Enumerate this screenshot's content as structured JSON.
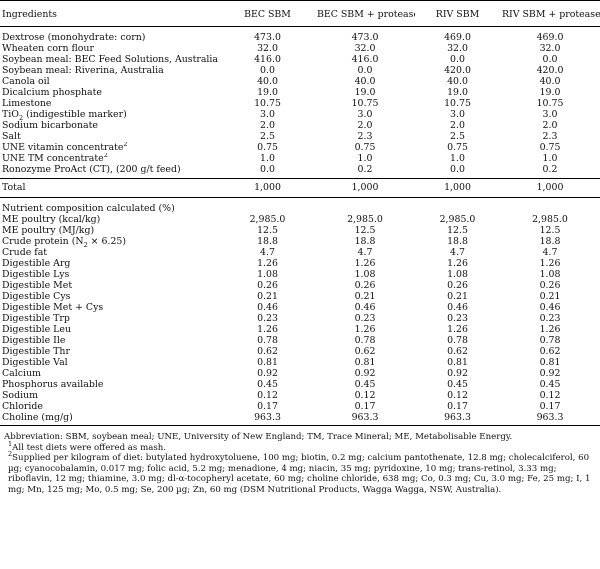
{
  "header": {
    "col0": "Ingredients",
    "col1": "BEC SBM",
    "col2": "BEC SBM + protease",
    "col3": "RIV SBM",
    "col4": "RIV SBM + protease"
  },
  "ingredients": [
    {
      "name": "Dextrose (monohydrate: corn)",
      "v": [
        "473.0",
        "473.0",
        "469.0",
        "469.0"
      ]
    },
    {
      "name": "Wheaten corn flour",
      "v": [
        "32.0",
        "32.0",
        "32.0",
        "32.0"
      ]
    },
    {
      "name": "Soybean meal: BEC Feed Solutions, Australia",
      "v": [
        "416.0",
        "416.0",
        "0.0",
        "0.0"
      ]
    },
    {
      "name": "Soybean meal: Riverina, Australia",
      "v": [
        "0.0",
        "0.0",
        "420.0",
        "420.0"
      ]
    },
    {
      "name": "Canola oil",
      "v": [
        "40.0",
        "40.0",
        "40.0",
        "40.0"
      ]
    },
    {
      "name": "Dicalcium phosphate",
      "v": [
        "19.0",
        "19.0",
        "19.0",
        "19.0"
      ]
    },
    {
      "name": "Limestone",
      "v": [
        "10.75",
        "10.75",
        "10.75",
        "10.75"
      ]
    },
    {
      "name": "(indigestible marker)",
      "v": [
        "3.0",
        "3.0",
        "3.0",
        "3.0"
      ]
    },
    {
      "name": "Sodium bicarbonate",
      "v": [
        "2.0",
        "2.0",
        "2.0",
        "2.0"
      ]
    },
    {
      "name": "Salt",
      "v": [
        "2.5",
        "2.3",
        "2.5",
        "2.3"
      ]
    },
    {
      "name": "UNE vitamin concentrate",
      "v": [
        "0.75",
        "0.75",
        "0.75",
        "0.75"
      ]
    },
    {
      "name": "UNE TM concentrate",
      "v": [
        "1.0",
        "1.0",
        "1.0",
        "1.0"
      ]
    },
    {
      "name": "Ronozyme ProAct (CT), (200 g/t feed)",
      "v": [
        "0.0",
        "0.2",
        "0.0",
        "0.2"
      ]
    }
  ],
  "tio2": {
    "pre": "TiO",
    "sub": "2"
  },
  "vit_sup": "2",
  "tm_sup": "2",
  "total": {
    "name": "Total",
    "v": [
      "1,000",
      "1,000",
      "1,000",
      "1,000"
    ]
  },
  "nutrient_heading": "Nutrient composition calculated (%)",
  "nutrients": [
    {
      "name": "ME poultry (kcal/kg)",
      "v": [
        "2,985.0",
        "2,985.0",
        "2,985.0",
        "2,985.0"
      ]
    },
    {
      "name": "ME poultry (MJ/kg)",
      "v": [
        "12.5",
        "12.5",
        "12.5",
        "12.5"
      ]
    },
    {
      "name": "Crude protein",
      "v": [
        "18.8",
        "18.8",
        "18.8",
        "18.8"
      ]
    },
    {
      "name": "Crude fat",
      "v": [
        "4.7",
        "4.7",
        "4.7",
        "4.7"
      ]
    },
    {
      "name": "Digestible Arg",
      "v": [
        "1.26",
        "1.26",
        "1.26",
        "1.26"
      ]
    },
    {
      "name": "Digestible Lys",
      "v": [
        "1.08",
        "1.08",
        "1.08",
        "1.08"
      ]
    },
    {
      "name": "Digestible Met",
      "v": [
        "0.26",
        "0.26",
        "0.26",
        "0.26"
      ]
    },
    {
      "name": "Digestible Cys",
      "v": [
        "0.21",
        "0.21",
        "0.21",
        "0.21"
      ]
    },
    {
      "name": "Digestible Met + Cys",
      "v": [
        "0.46",
        "0.46",
        "0.46",
        "0.46"
      ]
    },
    {
      "name": "Digestible Trp",
      "v": [
        "0.23",
        "0.23",
        "0.23",
        "0.23"
      ]
    },
    {
      "name": "Digestible Leu",
      "v": [
        "1.26",
        "1.26",
        "1.26",
        "1.26"
      ]
    },
    {
      "name": "Digestible Ile",
      "v": [
        "0.78",
        "0.78",
        "0.78",
        "0.78"
      ]
    },
    {
      "name": "Digestible Thr",
      "v": [
        "0.62",
        "0.62",
        "0.62",
        "0.62"
      ]
    },
    {
      "name": "Digestible Val",
      "v": [
        "0.81",
        "0.81",
        "0.81",
        "0.81"
      ]
    },
    {
      "name": "Calcium",
      "v": [
        "0.92",
        "0.92",
        "0.92",
        "0.92"
      ]
    },
    {
      "name": "Phosphorus available",
      "v": [
        "0.45",
        "0.45",
        "0.45",
        "0.45"
      ]
    },
    {
      "name": "Sodium",
      "v": [
        "0.12",
        "0.12",
        "0.12",
        "0.12"
      ]
    },
    {
      "name": "Chloride",
      "v": [
        "0.17",
        "0.17",
        "0.17",
        "0.17"
      ]
    },
    {
      "name": "Choline (mg/g)",
      "v": [
        "963.3",
        "963.3",
        "963.3",
        "963.3"
      ]
    }
  ],
  "cp_suffix": {
    "pre": "(N",
    "sub": "2",
    "post": " × 6.25)"
  },
  "notes": {
    "abbrev": "Abbreviation: SBM, soybean meal; UNE, University of New England; TM, Trace Mineral; ME, Metabolisable Energy.",
    "n1_sup": "1",
    "n1": "All test diets were offered as mash.",
    "n2_sup": "2",
    "n2": "Supplied per kilogram of diet: butylated hydroxytoluene, 100 mg; biotin, 0.2 mg; calcium pantothenate, 12.8 mg; cholecalciferol, 60 µg; cyanocobalamin, 0.017 mg; folic acid, 5.2 mg; menadione, 4 mg; niacin, 35 mg; pyridoxine, 10 mg; trans-retinol, 3.33 mg; riboflavin, 12 mg; thiamine, 3.0 mg; dl-α-tocopheryl acetate, 60 mg; choline chloride, 638 mg; Co, 0.3 mg; Cu, 3.0 mg; Fe, 25 mg; I, 1 mg; Mn, 125 mg; Mo, 0.5 mg; Se, 200 µg; Zn, 60 mg (DSM Nutritional Products, Wagga Wagga, NSW, Australia)."
  }
}
